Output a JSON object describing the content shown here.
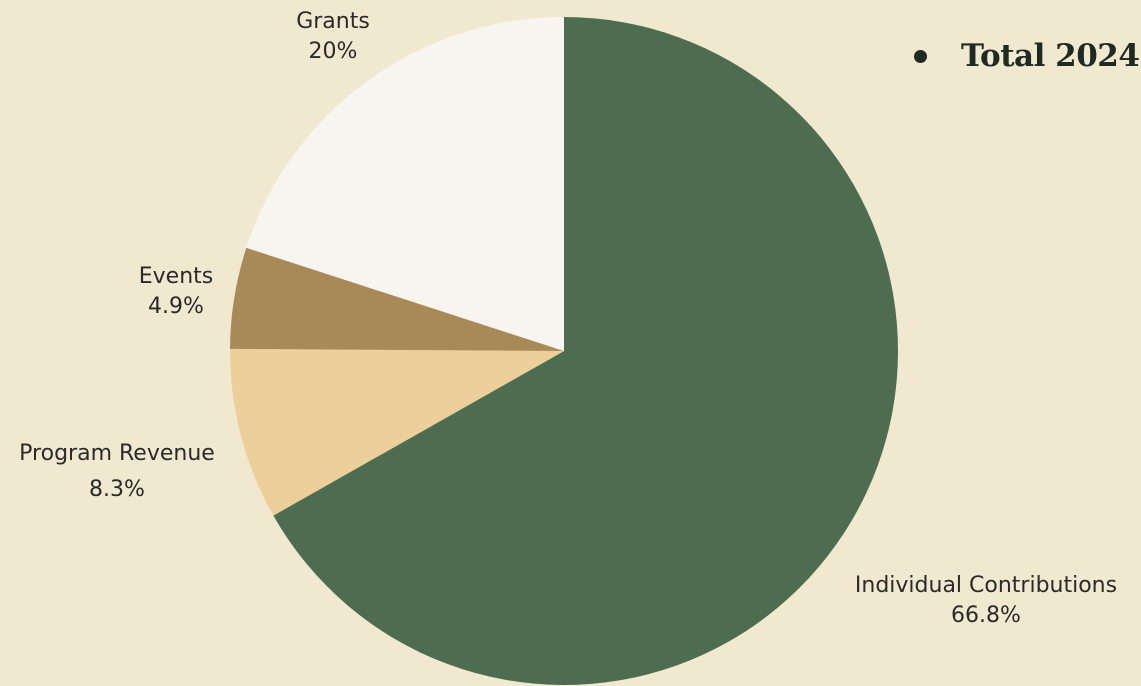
{
  "chart_data": {
    "type": "pie",
    "title": "",
    "start_angle_deg": 0,
    "direction": "clockwise",
    "slices": [
      {
        "label": "Individual Contributions",
        "value": 66.8,
        "pct_label": "66.8%",
        "color": "#4e6d50"
      },
      {
        "label": "Program Revenue",
        "value": 8.3,
        "pct_label": "8.3%",
        "color": "#eccf9b"
      },
      {
        "label": "Events",
        "value": 4.9,
        "pct_label": "4.9%",
        "color": "#a88a58"
      },
      {
        "label": "Grants",
        "value": 20,
        "pct_label": "20%",
        "color": "#f8f5f0"
      }
    ],
    "legend": {
      "position": "top-right",
      "entries": [
        "Total 2024"
      ]
    }
  }
}
